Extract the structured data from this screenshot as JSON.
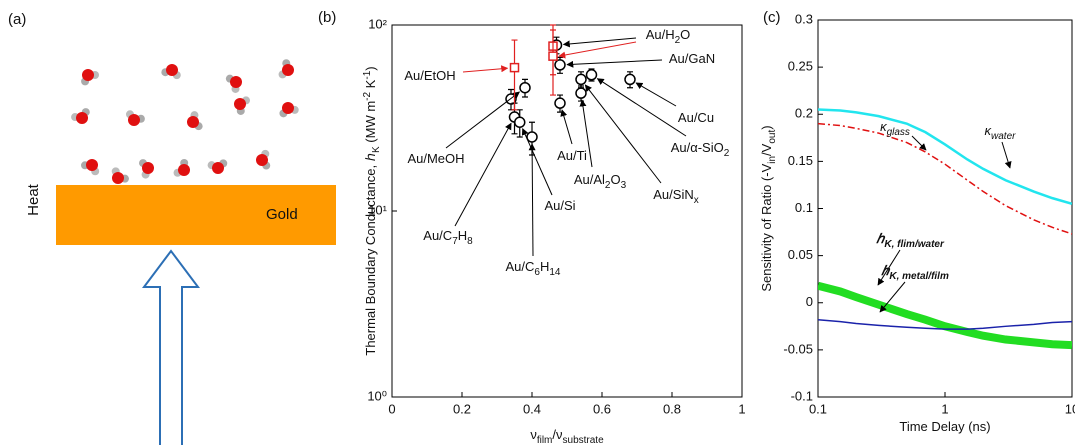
{
  "illustration": {
    "label": "(a)",
    "heat": "Heat",
    "material": "Gold"
  },
  "chart_data": [
    {
      "type": "scatter",
      "label": "(b)",
      "y_label": [
        "Thermal Boundary Conductance, ℎ",
        {
          "sub": "K"
        },
        " (MW m",
        {
          "sup": "-2"
        },
        " K",
        {
          "sup": "-1"
        },
        ")"
      ],
      "x_label": [
        "ν",
        {
          "sub": "film"
        },
        "/ν",
        {
          "sub": "substrate"
        }
      ],
      "xlim": [
        0,
        1
      ],
      "xticks": [
        0,
        0.2,
        0.4,
        0.6,
        0.8,
        1
      ],
      "y_scale": "log",
      "ylim": [
        1,
        100
      ],
      "yticks": [
        {
          "value": 1,
          "label": "10⁰"
        },
        {
          "value": 10,
          "label": "10¹"
        },
        {
          "value": 100,
          "label": "10²"
        }
      ],
      "series": [
        {
          "color": "#000000",
          "marker": "circle",
          "x": [
            0.34,
            0.35,
            0.365,
            0.38,
            0.4,
            0.47,
            0.48,
            0.48,
            0.54,
            0.54,
            0.57,
            0.68
          ],
          "values": [
            40,
            32,
            30,
            46,
            25,
            78,
            61,
            38,
            43,
            51,
            54,
            51
          ],
          "errors": [
            5,
            6,
            5,
            5,
            5,
            8,
            6,
            4,
            4,
            5,
            4,
            5
          ],
          "labels": [
            null,
            [
              "Au/C",
              {
                "sub": "7"
              },
              "H",
              {
                "sub": "8"
              }
            ],
            [
              "Au/Si"
            ],
            [
              "Au/MeOH"
            ],
            [
              "Au/C",
              {
                "sub": "6"
              },
              "H",
              {
                "sub": "14"
              }
            ],
            [
              "Au/H",
              {
                "sub": "2"
              },
              "O"
            ],
            [
              "Au/GaN"
            ],
            [
              "Au/Ti"
            ],
            [
              "Au/Al",
              {
                "sub": "2"
              },
              "O",
              {
                "sub": "3"
              }
            ],
            [
              "Au/SiN",
              {
                "sub": "x"
              }
            ],
            [
              "Au/α-SiO",
              {
                "sub": "2"
              }
            ],
            [
              "Au/Cu"
            ]
          ]
        },
        {
          "color": "#e02020",
          "marker": "square",
          "x": [
            0.35,
            0.46,
            0.46
          ],
          "values": [
            59,
            77,
            68
          ],
          "errors": [
            24,
            23,
            26
          ],
          "labels": [
            [
              "Au/EtOH"
            ],
            null,
            null
          ]
        }
      ]
    },
    {
      "type": "line",
      "label": "(c)",
      "y_label": [
        "Sensitivity of Ratio (-V",
        {
          "sub": "in"
        },
        "/V",
        {
          "sub": "out"
        },
        ")"
      ],
      "x_label": [
        "Time Delay (ns)"
      ],
      "x_scale": "log",
      "xlim": [
        0.1,
        10
      ],
      "xticks": [
        0.1,
        1,
        10
      ],
      "ylim": [
        -0.1,
        0.3
      ],
      "yticks": [
        -0.1,
        -0.05,
        0,
        0.05,
        0.1,
        0.15,
        0.2,
        0.25,
        0.3
      ],
      "x": [
        0.1,
        0.15,
        0.2,
        0.3,
        0.5,
        0.7,
        1,
        1.5,
        2,
        3,
        5,
        7,
        10
      ],
      "series": [
        {
          "color": "#22e5ee",
          "width": 2.5,
          "label": [
            "κ",
            {
              "sub": "water"
            }
          ],
          "values": [
            0.205,
            0.204,
            0.202,
            0.198,
            0.19,
            0.181,
            0.168,
            0.152,
            0.142,
            0.13,
            0.118,
            0.111,
            0.105
          ]
        },
        {
          "color": "#e01010",
          "width": 1.5,
          "dash": "7 3 2 3",
          "label": [
            "κ",
            {
              "sub": "glass"
            }
          ],
          "values": [
            0.19,
            0.188,
            0.185,
            0.18,
            0.17,
            0.16,
            0.147,
            0.13,
            0.118,
            0.103,
            0.088,
            0.08,
            0.073
          ]
        },
        {
          "color": "#22dd22",
          "width": 8,
          "label": [
            "ℎ",
            {
              "sub": "K, flim/water"
            }
          ],
          "values": [
            0.018,
            0.012,
            0.006,
            -0.002,
            -0.012,
            -0.018,
            -0.025,
            -0.031,
            -0.035,
            -0.039,
            -0.042,
            -0.044,
            -0.045
          ]
        },
        {
          "color": "#1a22aa",
          "width": 1.5,
          "label": [
            "ℎ",
            {
              "sub": "K, metal/film"
            }
          ],
          "values": [
            -0.018,
            -0.02,
            -0.022,
            -0.024,
            -0.026,
            -0.027,
            -0.028,
            -0.028,
            -0.027,
            -0.025,
            -0.023,
            -0.021,
            -0.02
          ]
        }
      ]
    }
  ]
}
